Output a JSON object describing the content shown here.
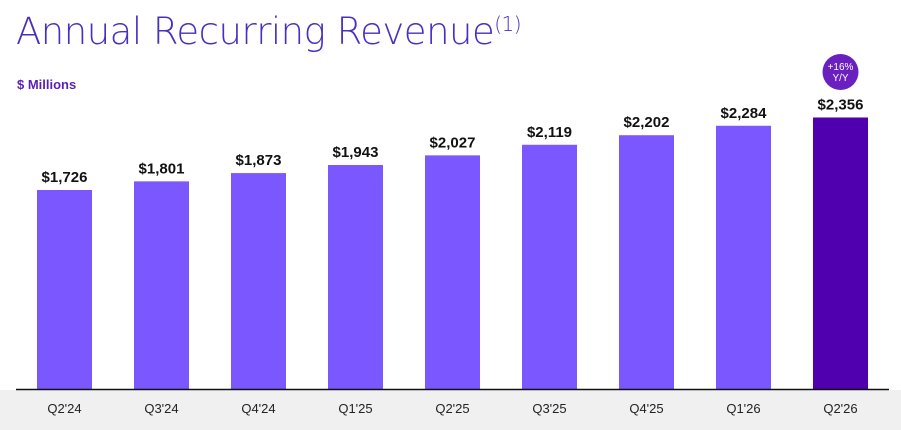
{
  "title": {
    "text": "Annual Recurring Revenue",
    "note": "(1)"
  },
  "unit_label": "$ Millions",
  "growth_badge": {
    "line1": "+16%",
    "line2": "Y/Y",
    "color": "#6a1fbf"
  },
  "chart_data": {
    "type": "bar",
    "title": "Annual Recurring Revenue(1)",
    "ylabel": "$ Millions",
    "categories": [
      "Q2'24",
      "Q3'24",
      "Q4'24",
      "Q1'25",
      "Q2'25",
      "Q3'25",
      "Q4'25",
      "Q1'26",
      "Q2'26"
    ],
    "values": [
      1726,
      1801,
      1873,
      1943,
      2027,
      2119,
      2202,
      2284,
      2356
    ],
    "value_labels": [
      "$1,726",
      "$1,801",
      "$1,873",
      "$1,943",
      "$2,027",
      "$2,119",
      "$2,202",
      "$2,284",
      "$2,356"
    ],
    "colors": {
      "bar": "#7b57ff",
      "highlight_bar": "#5100b0",
      "axis": "#111111",
      "label": "#111111"
    },
    "highlight_index": 8,
    "grid": false,
    "legend": "none"
  }
}
